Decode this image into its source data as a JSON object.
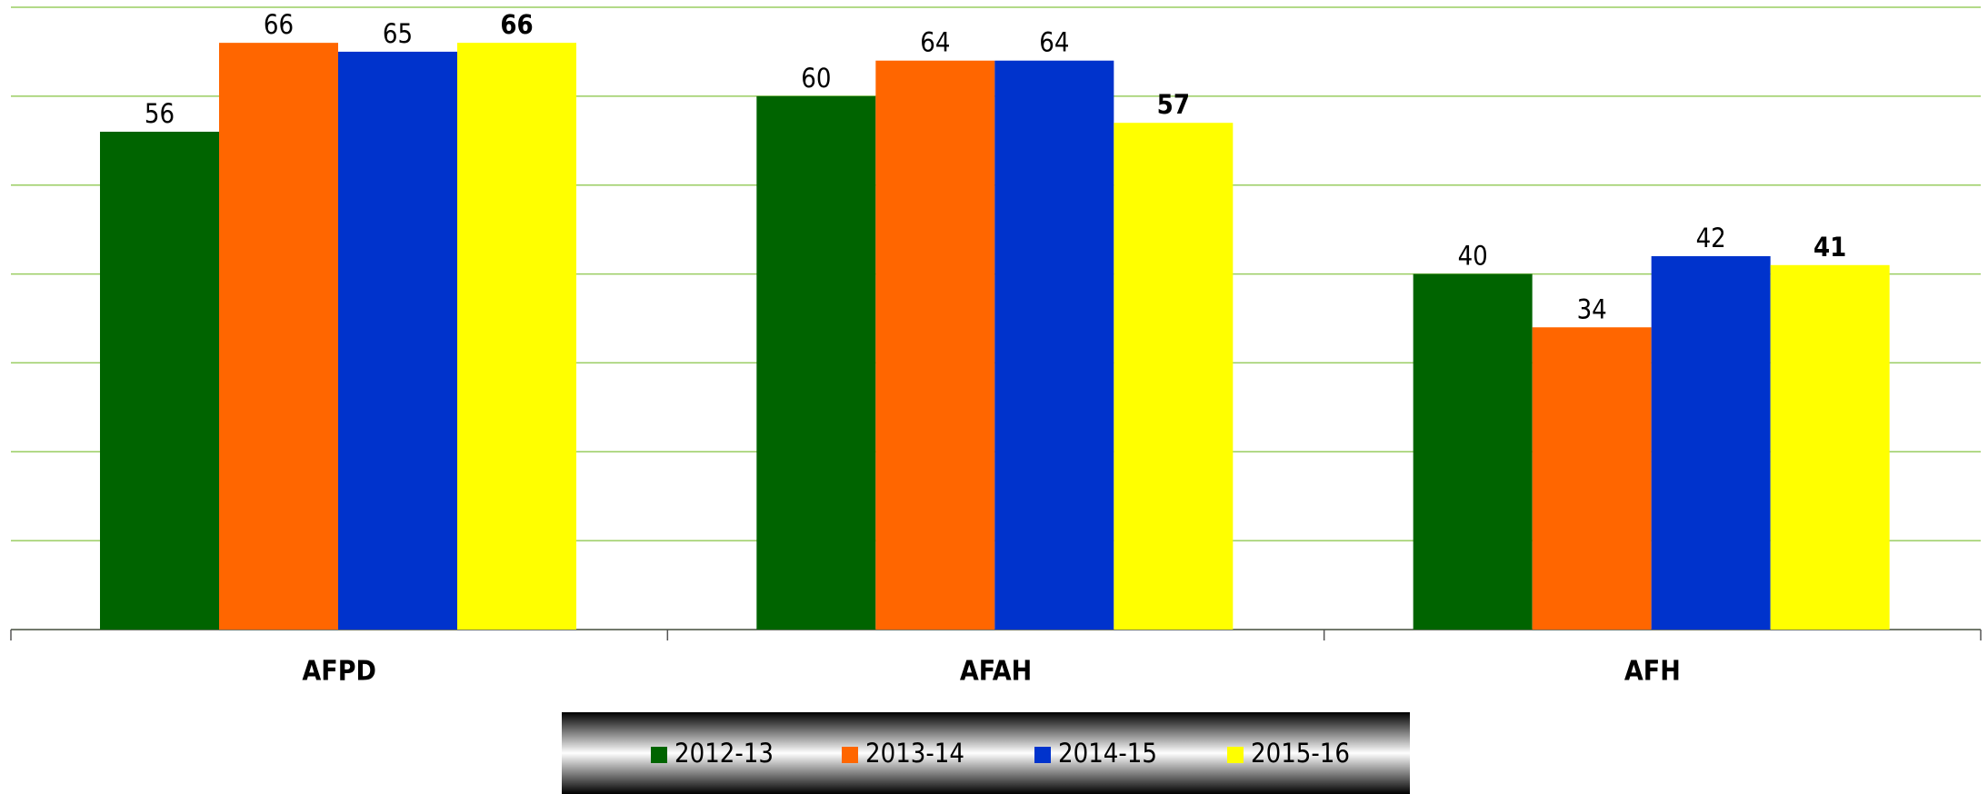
{
  "chart_data": {
    "type": "bar",
    "categories": [
      "AFPD",
      "AFAH",
      "AFH"
    ],
    "series": [
      {
        "name": "2012-13",
        "color": "#006400",
        "values": [
          56,
          60,
          40
        ]
      },
      {
        "name": "2013-14",
        "color": "#ff6600",
        "values": [
          66,
          64,
          34
        ]
      },
      {
        "name": "2014-15",
        "color": "#0033cc",
        "values": [
          65,
          64,
          42
        ]
      },
      {
        "name": "2015-16",
        "color": "#ffff00",
        "values": [
          66,
          57,
          41
        ]
      }
    ],
    "ylim": [
      0,
      70
    ],
    "yticks": [
      0,
      10,
      20,
      30,
      40,
      50,
      60,
      70
    ],
    "grid": true,
    "legend": "bottom"
  }
}
